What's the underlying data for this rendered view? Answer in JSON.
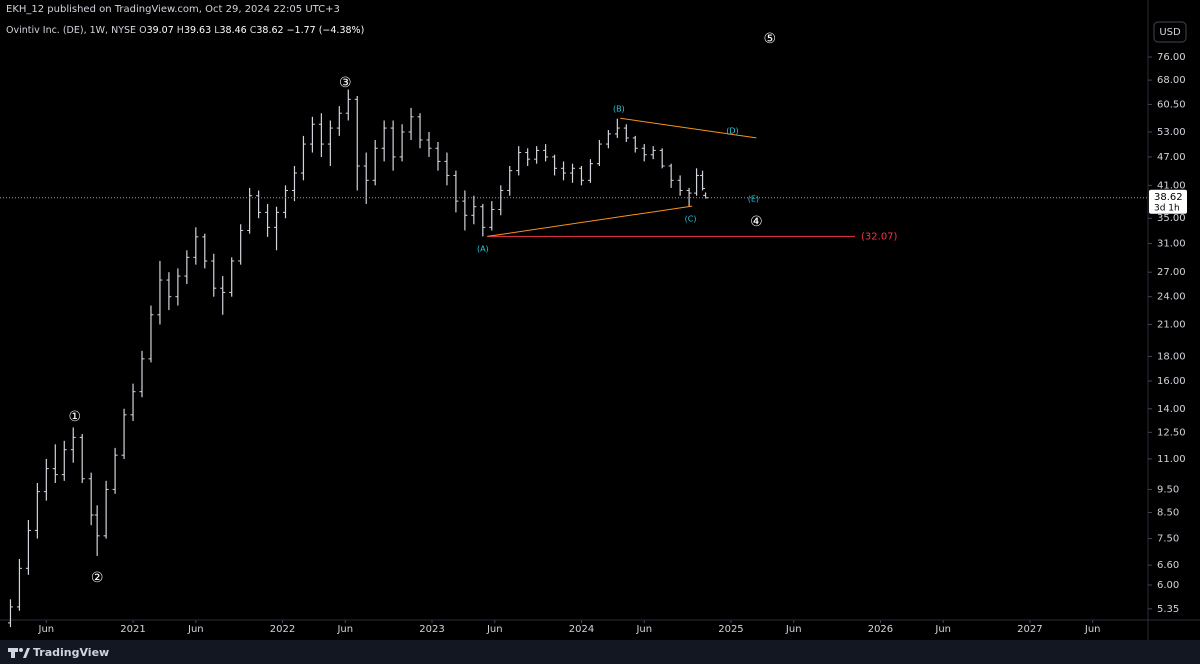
{
  "header": {
    "publisher": "EKH_12 published on TradingView.com, Oct 29, 2024 22:05 UTC+3",
    "symbol": "Ovintiv Inc. (DE), 1W, NYSE",
    "ohlc": [
      {
        "key": "O",
        "value": 39.07
      },
      {
        "key": "H",
        "value": 39.63
      },
      {
        "key": "L",
        "value": 38.46
      },
      {
        "key": "C",
        "value": 38.62
      }
    ],
    "change": "−1.77 (−4.38%)",
    "currency": "USD"
  },
  "footer": {
    "brand": "TradingView"
  },
  "chart_data": {
    "type": "ohlc",
    "log_scale": true,
    "grid": false,
    "color": "#d1d4dc",
    "x": [
      2020.18,
      2020.24,
      2020.3,
      2020.36,
      2020.42,
      2020.48,
      2020.54,
      2020.6,
      2020.66,
      2020.72,
      2020.76,
      2020.82,
      2020.88,
      2020.94,
      2021.0,
      2021.06,
      2021.12,
      2021.18,
      2021.24,
      2021.3,
      2021.36,
      2021.42,
      2021.48,
      2021.54,
      2021.6,
      2021.66,
      2021.72,
      2021.78,
      2021.84,
      2021.9,
      2021.96,
      2022.02,
      2022.08,
      2022.14,
      2022.2,
      2022.26,
      2022.32,
      2022.38,
      2022.44,
      2022.5,
      2022.56,
      2022.62,
      2022.68,
      2022.74,
      2022.8,
      2022.86,
      2022.92,
      2022.98,
      2023.04,
      2023.1,
      2023.16,
      2023.22,
      2023.28,
      2023.34,
      2023.4,
      2023.46,
      2023.52,
      2023.58,
      2023.64,
      2023.7,
      2023.76,
      2023.82,
      2023.88,
      2023.94,
      2024.0,
      2024.06,
      2024.12,
      2024.18,
      2024.24,
      2024.3,
      2024.36,
      2024.42,
      2024.48,
      2024.54,
      2024.6,
      2024.66,
      2024.72,
      2024.77,
      2024.81,
      2024.83
    ],
    "open": [
      5.0,
      5.4,
      6.5,
      7.8,
      9.4,
      10.5,
      10.2,
      11.5,
      12.2,
      10.0,
      8.4,
      7.6,
      9.5,
      11.2,
      13.6,
      15.2,
      17.8,
      22.0,
      26.0,
      24.0,
      26.5,
      29.0,
      32.0,
      28.5,
      25.0,
      24.5,
      28.5,
      33.0,
      39.0,
      36.0,
      33.5,
      36.0,
      40.0,
      43.5,
      50.0,
      55.0,
      50.0,
      54.0,
      58.0,
      62.0,
      45.0,
      42.0,
      49.0,
      54.0,
      47.0,
      53.0,
      57.0,
      51.0,
      49.0,
      46.0,
      43.0,
      38.0,
      35.5,
      37.0,
      33.5,
      36.5,
      40.0,
      44.0,
      48.0,
      46.5,
      48.5,
      47.0,
      44.5,
      43.5,
      44.5,
      42.0,
      45.5,
      50.0,
      52.5,
      54.0,
      51.5,
      49.0,
      47.5,
      48.5,
      45.0,
      42.0,
      40.0,
      39.5,
      43.0,
      39.07
    ],
    "high": [
      5.6,
      6.8,
      8.2,
      9.8,
      11.0,
      11.8,
      12.0,
      12.8,
      12.4,
      10.3,
      8.8,
      9.9,
      11.6,
      14.0,
      15.8,
      18.5,
      23.0,
      28.5,
      27.0,
      27.5,
      30.0,
      33.5,
      32.5,
      29.5,
      26.5,
      29.0,
      34.0,
      40.5,
      40.0,
      37.5,
      37.0,
      41.0,
      45.0,
      52.0,
      57.0,
      58.0,
      56.0,
      60.0,
      65.0,
      63.0,
      48.0,
      51.0,
      56.0,
      56.0,
      55.0,
      59.5,
      58.0,
      53.0,
      50.5,
      48.0,
      44.0,
      40.0,
      39.0,
      37.5,
      38.0,
      41.0,
      45.0,
      49.5,
      49.0,
      49.5,
      50.0,
      47.5,
      46.0,
      45.5,
      45.0,
      46.5,
      51.0,
      53.5,
      56.5,
      55.0,
      52.0,
      50.0,
      49.5,
      49.0,
      45.5,
      43.0,
      40.5,
      44.5,
      44.0,
      39.63
    ],
    "low": [
      4.9,
      5.3,
      6.3,
      7.5,
      9.0,
      9.8,
      9.9,
      10.8,
      9.8,
      8.0,
      6.9,
      7.5,
      9.3,
      11.0,
      13.2,
      14.8,
      17.5,
      21.0,
      22.5,
      23.0,
      25.5,
      28.0,
      27.5,
      24.0,
      22.0,
      24.0,
      28.0,
      32.5,
      35.0,
      32.0,
      30.0,
      35.0,
      38.0,
      42.0,
      48.0,
      47.0,
      45.0,
      52.0,
      56.0,
      40.0,
      37.5,
      41.0,
      46.0,
      44.0,
      46.0,
      51.0,
      49.0,
      47.0,
      44.0,
      41.0,
      36.0,
      33.0,
      34.0,
      32.07,
      33.0,
      35.5,
      39.0,
      43.0,
      45.0,
      45.5,
      46.0,
      43.0,
      42.0,
      41.5,
      41.0,
      41.5,
      45.0,
      49.0,
      51.5,
      50.5,
      48.0,
      46.0,
      46.5,
      44.5,
      40.5,
      39.0,
      37.1,
      39.0,
      40.0,
      38.46
    ],
    "close": [
      5.4,
      6.5,
      7.8,
      9.4,
      10.5,
      10.2,
      11.5,
      12.2,
      10.0,
      8.4,
      7.6,
      9.5,
      11.2,
      13.6,
      15.2,
      17.8,
      22.0,
      26.0,
      24.0,
      26.5,
      29.0,
      32.0,
      28.5,
      25.0,
      24.5,
      28.5,
      33.0,
      39.0,
      36.0,
      33.5,
      36.0,
      40.0,
      43.5,
      50.0,
      55.0,
      50.0,
      54.0,
      58.0,
      62.0,
      45.0,
      42.0,
      49.0,
      54.0,
      47.0,
      53.0,
      57.0,
      51.0,
      49.0,
      46.0,
      43.0,
      38.0,
      35.5,
      37.0,
      33.5,
      36.5,
      40.0,
      44.0,
      48.0,
      46.5,
      48.5,
      47.0,
      44.5,
      43.5,
      44.5,
      42.0,
      45.5,
      50.0,
      52.5,
      54.0,
      51.5,
      49.0,
      47.5,
      48.5,
      45.0,
      42.0,
      40.0,
      39.5,
      43.0,
      40.39,
      38.62
    ],
    "countdown": "3d 1h",
    "xlim": [
      2020.11,
      2027.79
    ],
    "xticks": [
      {
        "value": 2020.42,
        "label": "Jun"
      },
      2021,
      {
        "value": 2021.42,
        "label": "Jun"
      },
      2022,
      {
        "value": 2022.42,
        "label": "Jun"
      },
      2023,
      {
        "value": 2023.42,
        "label": "Jun"
      },
      2024,
      {
        "value": 2024.42,
        "label": "Jun"
      },
      2025,
      {
        "value": 2025.42,
        "label": "Jun"
      },
      2026,
      {
        "value": 2026.42,
        "label": "Jun"
      },
      2027,
      {
        "value": 2027.42,
        "label": "Jun"
      }
    ],
    "ylim": [
      5.07,
      90.8
    ],
    "yticks": [
      {
        "value": 5.35,
        "label": "5.35"
      },
      {
        "value": 6,
        "label": "6.00"
      },
      {
        "value": 6.6,
        "label": "6.60"
      },
      {
        "value": 7.5,
        "label": "7.50"
      },
      {
        "value": 8.5,
        "label": "8.50"
      },
      {
        "value": 9.5,
        "label": "9.50"
      },
      {
        "value": 11,
        "label": "11.00"
      },
      {
        "value": 12.5,
        "label": "12.50"
      },
      {
        "value": 14,
        "label": "14.00"
      },
      {
        "value": 16,
        "label": "16.00"
      },
      {
        "value": 18,
        "label": "18.00"
      },
      {
        "value": 21,
        "label": "21.00"
      },
      {
        "value": 24,
        "label": "24.00"
      },
      {
        "value": 27,
        "label": "27.00"
      },
      {
        "value": 31,
        "label": "31.00"
      },
      {
        "value": 35,
        "label": "35.00"
      },
      {
        "value": 41,
        "label": "41.00"
      },
      {
        "value": 47,
        "label": "47.00"
      },
      {
        "value": 53,
        "label": "53.00"
      },
      {
        "value": 60.5,
        "label": "60.50"
      },
      {
        "value": 68,
        "label": "68.00"
      },
      {
        "value": 76,
        "label": "76.00"
      }
    ],
    "annotations": [
      {
        "text": "①",
        "x": 2020.61,
        "y": 13.45,
        "color": "#ffffff"
      },
      {
        "text": "②",
        "x": 2020.76,
        "y": 6.21,
        "color": "#ffffff"
      },
      {
        "text": "③",
        "x": 2022.42,
        "y": 67,
        "color": "#ffffff"
      },
      {
        "text": "④",
        "x": 2025.17,
        "y": 34.4,
        "color": "#ffffff"
      },
      {
        "text": "⑤",
        "x": 2025.26,
        "y": 82.9,
        "color": "#ffffff"
      },
      {
        "text": "(A)",
        "x": 2023.34,
        "y": 30.2,
        "color": "#26c6da"
      },
      {
        "text": "(B)",
        "x": 2024.25,
        "y": 59.2,
        "color": "#26c6da"
      },
      {
        "text": "(C)",
        "x": 2024.73,
        "y": 34.9,
        "color": "#26c6da"
      },
      {
        "text": "(D)",
        "x": 2025.01,
        "y": 53.2,
        "color": "#26c6da"
      },
      {
        "text": "(E)",
        "x": 2025.15,
        "y": 38.4,
        "color": "#26c6da"
      }
    ],
    "trend_lines": [
      {
        "x": [
          2024.26,
          2025.17
        ],
        "y": [
          56.6,
          51.5
        ],
        "color": "#f7931e"
      },
      {
        "x": [
          2023.37,
          2024.74
        ],
        "y": [
          32.07,
          37.1
        ],
        "color": "#f7931e"
      }
    ],
    "level": {
      "value": 32.07,
      "label": "(32.07)",
      "x": [
        2023.37,
        2025.83
      ],
      "color": "#f23645"
    }
  }
}
